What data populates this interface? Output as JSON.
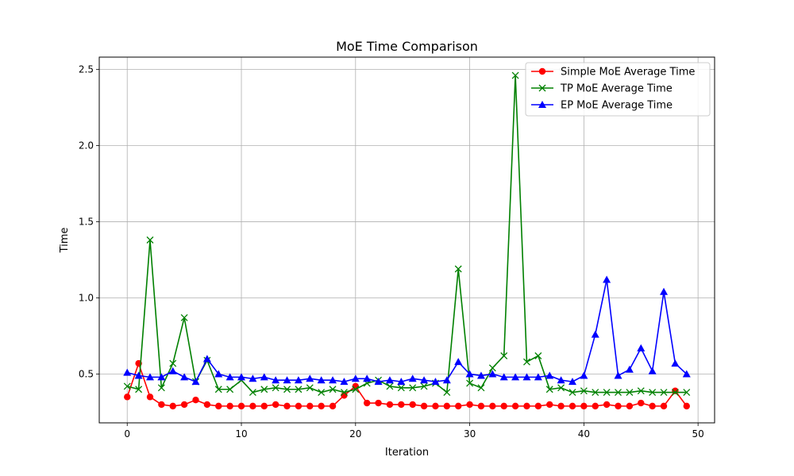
{
  "chart_data": {
    "type": "line",
    "title": "MoE Time Comparison",
    "xlabel": "Iteration",
    "ylabel": "Time",
    "xlim": [
      -2.45,
      51.45
    ],
    "ylim": [
      0.18,
      2.58
    ],
    "xticks": [
      0,
      10,
      20,
      30,
      40,
      50
    ],
    "yticks": [
      0.5,
      1.0,
      1.5,
      2.0,
      2.5
    ],
    "xtick_labels": [
      "0",
      "10",
      "20",
      "30",
      "40",
      "50"
    ],
    "ytick_labels": [
      "0.5",
      "1.0",
      "1.5",
      "2.0",
      "2.5"
    ],
    "grid": true,
    "legend_position": "top-right",
    "x": [
      0,
      1,
      2,
      3,
      4,
      5,
      6,
      7,
      8,
      9,
      10,
      11,
      12,
      13,
      14,
      15,
      16,
      17,
      18,
      19,
      20,
      21,
      22,
      23,
      24,
      25,
      26,
      27,
      28,
      29,
      30,
      31,
      32,
      33,
      34,
      35,
      36,
      37,
      38,
      39,
      40,
      41,
      42,
      43,
      44,
      45,
      46,
      47,
      48,
      49
    ],
    "series": [
      {
        "name": "Simple MoE Average Time",
        "color": "#ff0000",
        "marker": "circle",
        "values": [
          0.35,
          0.57,
          0.35,
          0.3,
          0.29,
          0.3,
          0.33,
          0.3,
          0.29,
          0.29,
          0.29,
          0.29,
          0.29,
          0.3,
          0.29,
          0.29,
          0.29,
          0.29,
          0.29,
          0.36,
          0.42,
          0.31,
          0.31,
          0.3,
          0.3,
          0.3,
          0.29,
          0.29,
          0.29,
          0.29,
          0.3,
          0.29,
          0.29,
          0.29,
          0.29,
          0.29,
          0.29,
          0.3,
          0.29,
          0.29,
          0.29,
          0.29,
          0.3,
          0.29,
          0.29,
          0.31,
          0.29,
          0.29,
          0.39,
          0.29
        ]
      },
      {
        "name": "TP MoE Average Time",
        "color": "#008000",
        "marker": "x",
        "values": [
          0.42,
          0.4,
          1.38,
          0.41,
          0.57,
          0.87,
          0.45,
          0.59,
          0.4,
          0.4,
          0.46,
          0.38,
          0.4,
          0.41,
          0.4,
          0.4,
          0.41,
          0.38,
          0.4,
          0.38,
          0.4,
          0.44,
          0.46,
          0.42,
          0.41,
          0.41,
          0.42,
          0.44,
          0.38,
          1.19,
          0.44,
          0.41,
          0.54,
          0.62,
          2.46,
          0.58,
          0.62,
          0.4,
          0.41,
          0.38,
          0.39,
          0.38,
          0.38,
          0.38,
          0.38,
          0.39,
          0.38,
          0.38,
          0.38,
          0.38
        ]
      },
      {
        "name": "EP MoE Average Time",
        "color": "#0000ff",
        "marker": "triangle",
        "values": [
          0.51,
          0.49,
          0.48,
          0.48,
          0.52,
          0.48,
          0.45,
          0.6,
          0.5,
          0.48,
          0.48,
          0.47,
          0.48,
          0.46,
          0.46,
          0.46,
          0.47,
          0.46,
          0.46,
          0.45,
          0.47,
          0.47,
          0.45,
          0.46,
          0.45,
          0.47,
          0.46,
          0.45,
          0.46,
          0.58,
          0.5,
          0.49,
          0.5,
          0.48,
          0.48,
          0.48,
          0.48,
          0.49,
          0.46,
          0.45,
          0.49,
          0.76,
          1.12,
          0.49,
          0.53,
          0.67,
          0.52,
          1.04,
          0.57,
          0.5
        ]
      }
    ]
  }
}
